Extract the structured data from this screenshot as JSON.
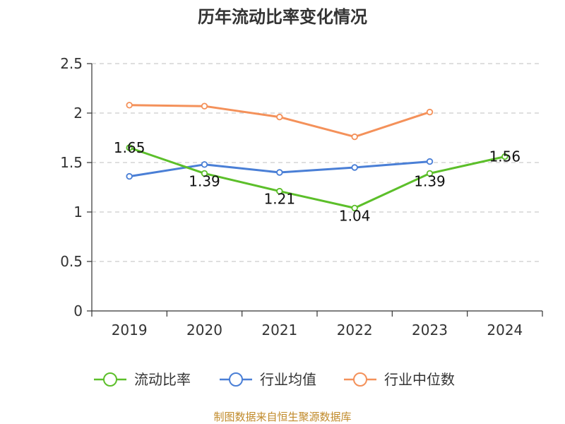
{
  "chart_data": {
    "type": "line",
    "title": "历年流动比率变化情况",
    "categories": [
      "2019",
      "2020",
      "2021",
      "2022",
      "2023",
      "2024"
    ],
    "ylim": [
      0,
      2.5
    ],
    "yticks": [
      "0",
      "0.5",
      "1",
      "1.5",
      "2",
      "2.5"
    ],
    "grid": true,
    "legend_position": "bottom",
    "series": [
      {
        "name": "流动比率",
        "color": "#5cbf2a",
        "values": [
          1.65,
          1.39,
          1.21,
          1.04,
          1.39,
          1.56
        ],
        "labels": [
          "1.65",
          "1.39",
          "1.21",
          "1.04",
          "1.39",
          "1.56"
        ]
      },
      {
        "name": "行业均值",
        "color": "#4a7fd6",
        "values": [
          1.36,
          1.48,
          1.4,
          1.45,
          1.51,
          null
        ]
      },
      {
        "name": "行业中位数",
        "color": "#f4915a",
        "values": [
          2.08,
          2.07,
          1.96,
          1.76,
          2.01,
          null
        ]
      }
    ],
    "source": "制图数据来自恒生聚源数据库"
  }
}
